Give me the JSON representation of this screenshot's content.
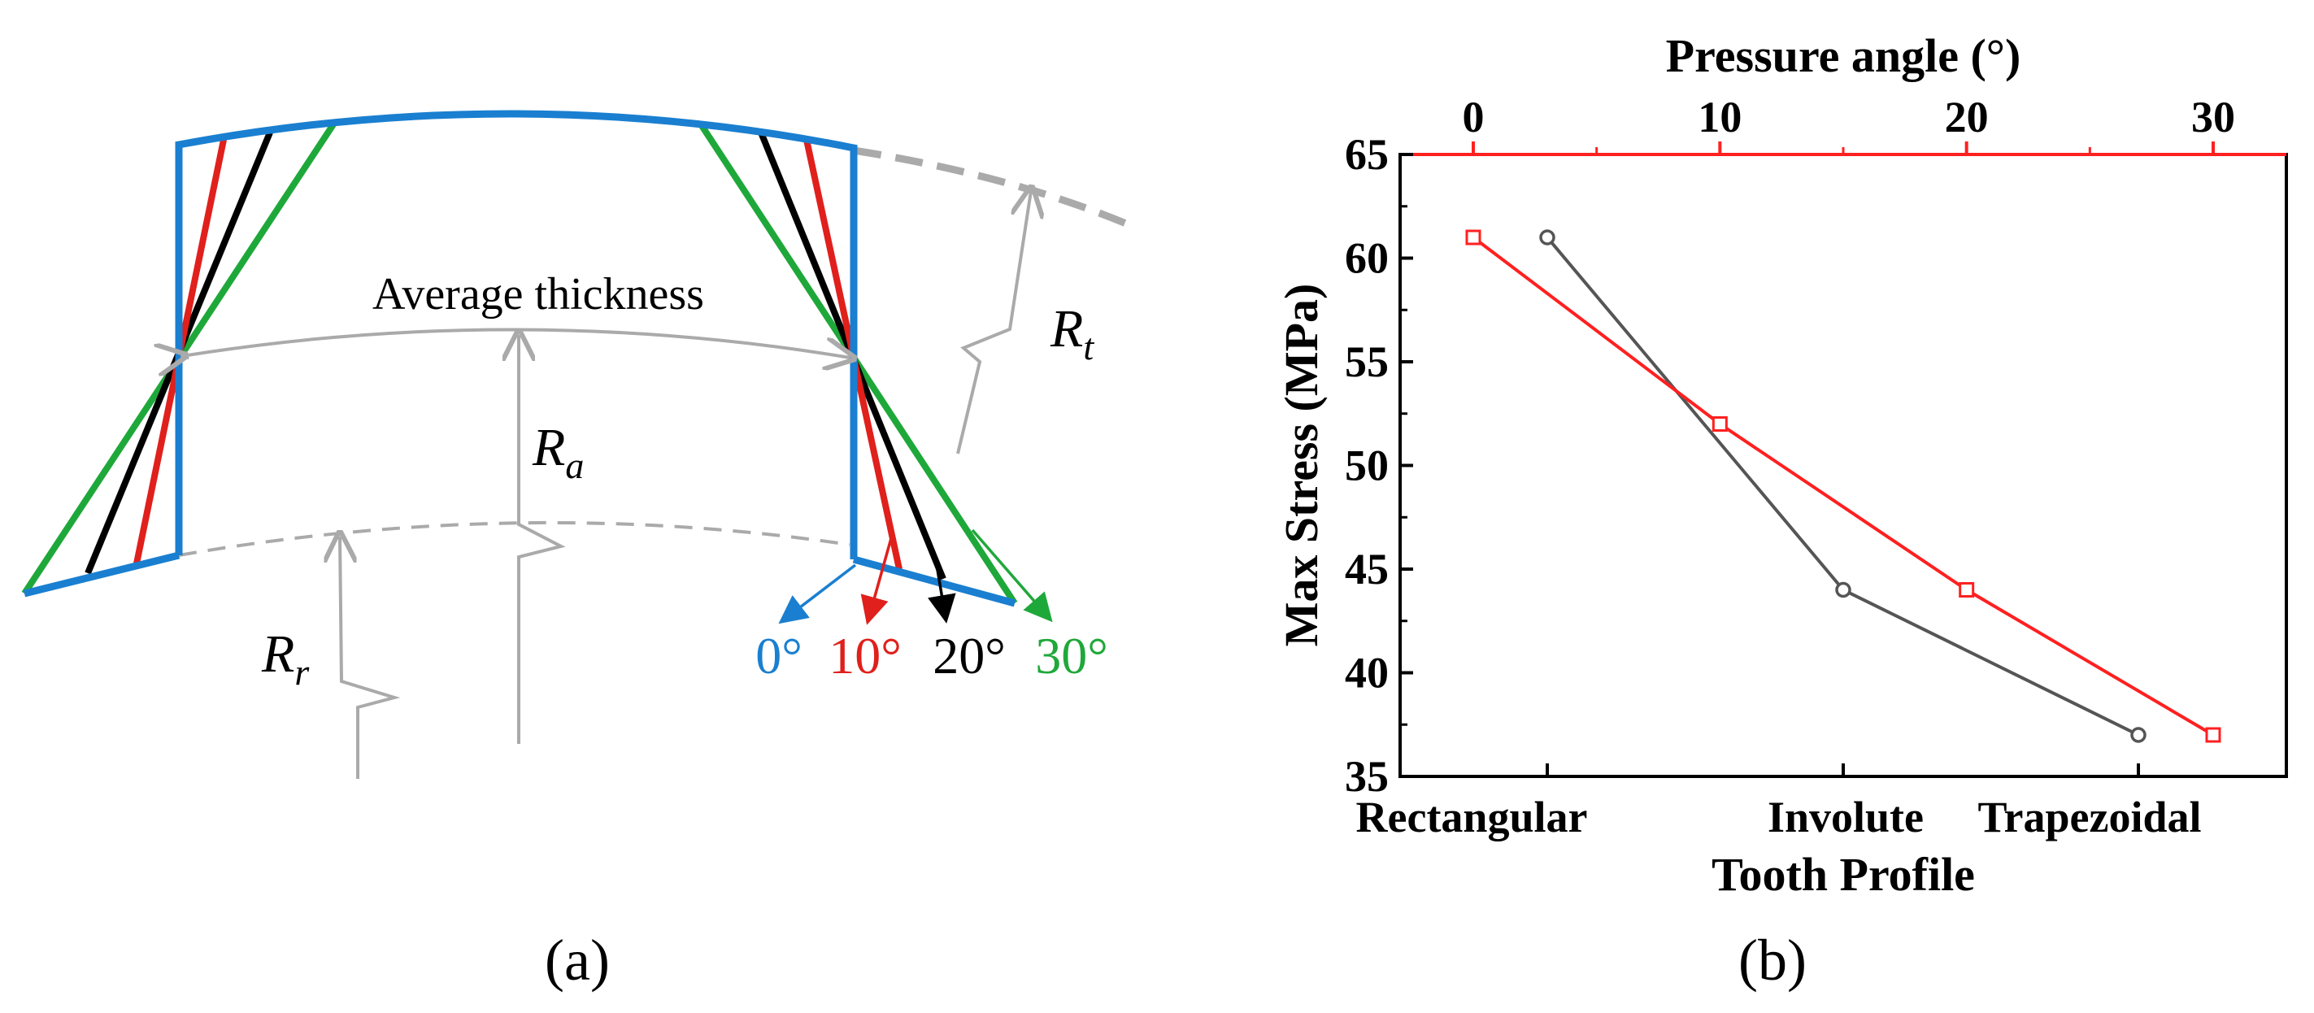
{
  "panel_a": {
    "caption": "(a)",
    "average_thickness_label": "Average thickness",
    "tip_radius": {
      "symbol": "R",
      "subscript": "t"
    },
    "root_radius": {
      "symbol": "R",
      "subscript": "r"
    },
    "average_radius": {
      "symbol": "R",
      "subscript": "a"
    },
    "angle_labels": [
      {
        "text": "0°",
        "color": "#1a7fd0"
      },
      {
        "text": "10°",
        "color": "#e0201c"
      },
      {
        "text": "20°",
        "color": "#000000"
      },
      {
        "text": "30°",
        "color": "#1fa83a"
      }
    ]
  },
  "panel_b": {
    "caption": "(b)"
  },
  "chart_data": {
    "type": "line",
    "ylabel": "Max Stress (MPa)",
    "ylim": [
      35,
      65
    ],
    "yticks": [
      35,
      40,
      45,
      50,
      55,
      60,
      65
    ],
    "bottom_axis": {
      "label": "Tooth Profile",
      "categories": [
        "Rectangular",
        "Involute",
        "Trapezoidal"
      ]
    },
    "top_axis": {
      "label": "Pressure angle (°)",
      "ticks": [
        0,
        10,
        20,
        30
      ],
      "color": "#ff2020"
    },
    "series": [
      {
        "name": "Tooth Profile",
        "axis": "bottom",
        "color": "#555555",
        "marker": "circle",
        "categories": [
          "Rectangular",
          "Involute",
          "Trapezoidal"
        ],
        "values": [
          61,
          44,
          37
        ]
      },
      {
        "name": "Pressure angle",
        "axis": "top",
        "color": "#ff2020",
        "marker": "square",
        "x": [
          0,
          10,
          20,
          30
        ],
        "values": [
          61,
          52,
          44,
          37
        ]
      }
    ]
  }
}
